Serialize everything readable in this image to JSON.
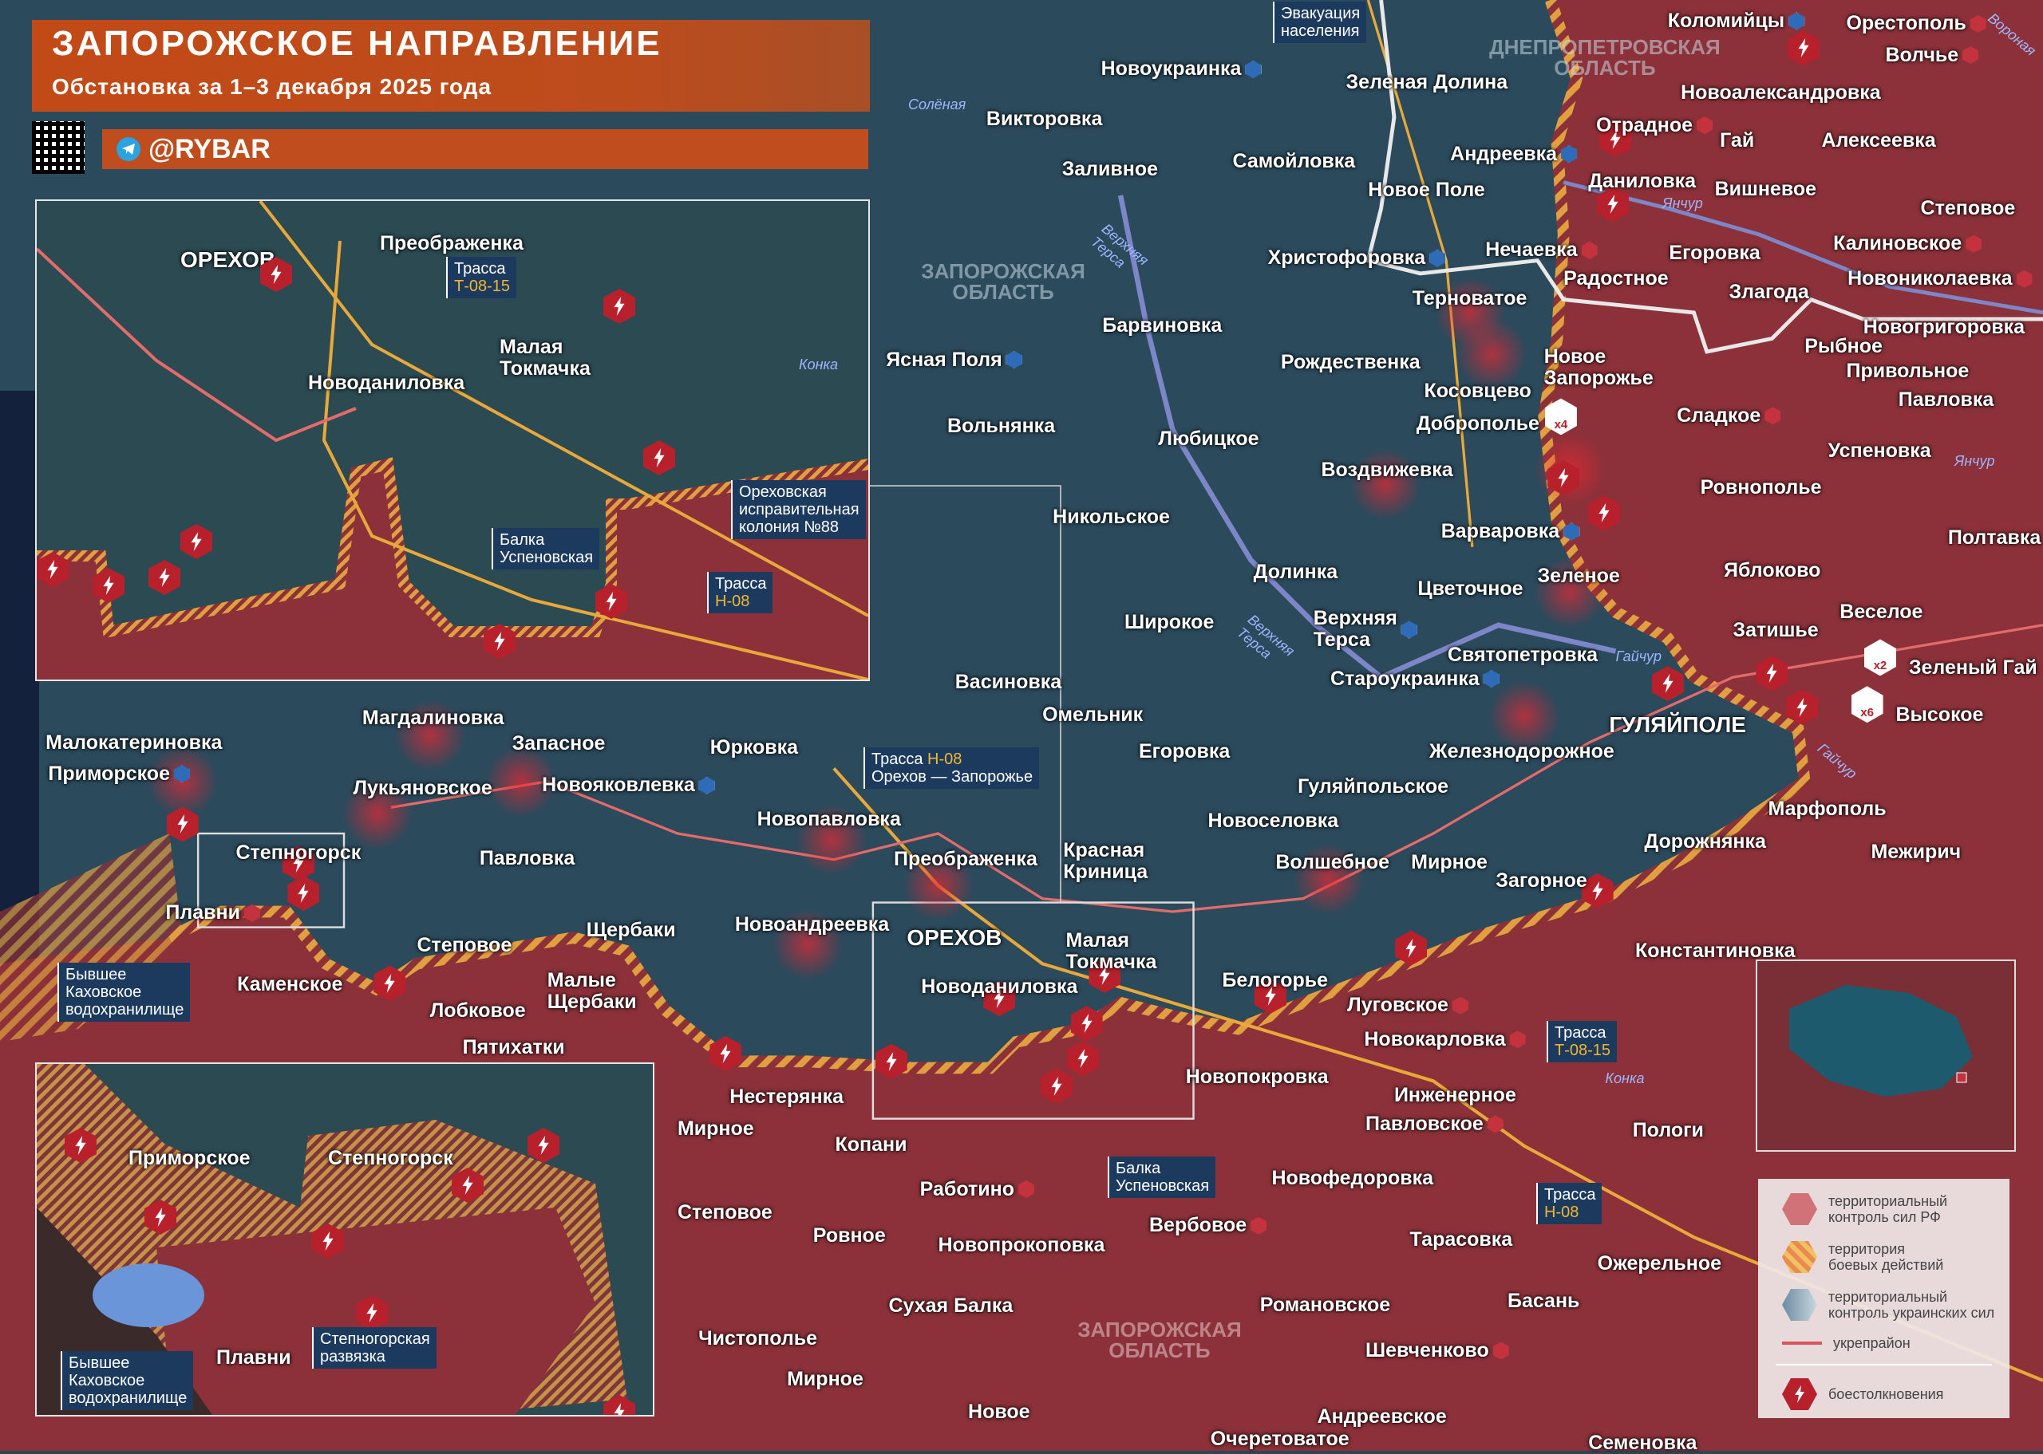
{
  "header": {
    "title": "ЗАПОРОЖСКОЕ НАПРАВЛЕНИЕ",
    "subtitle": "Обстановка за 1–3 декабря 2025 года",
    "channel": "@RYBAR"
  },
  "colors": {
    "ru_territory": "#8c3139",
    "ua_territory": "#2b4a5c",
    "combat_zone": "#e0a040",
    "clash": "#b8202b",
    "fortification": "#e46b6b",
    "accent": "#c24a17"
  },
  "regions": [
    "ДНЕПРОПЕТРОВСКАЯ\nОБЛАСТЬ",
    "ЗАПОРОЖСКАЯ\nОБЛАСТЬ",
    "ЗАПОРОЖСКАЯ\nОБЛАСТЬ"
  ],
  "rivers": [
    "Солёная",
    "Верхняя\nТерса",
    "Янчур",
    "Янчур",
    "Верхняя\nТерса",
    "Гайчур",
    "Гайчур",
    "Конка",
    "Вороная"
  ],
  "callouts": {
    "evacuation": "Эвакуация\nнаселения",
    "road_h08_main": {
      "label": "Трасса",
      "code": "Н-08",
      "route": "Орехов — Запорожье"
    },
    "balka": "Балка\nУспеновская",
    "road_t0815": {
      "label": "Трасса",
      "code": "Т-08-15"
    },
    "road_h08": {
      "label": "Трасса",
      "code": "Н-08"
    },
    "reservoir": "Бывшее\nКаховское\nводохранилище"
  },
  "places": [
    {
      "name": "Новоукраинка",
      "control": "ua"
    },
    {
      "name": "Зеленая Долина",
      "control": ""
    },
    {
      "name": "Коломийцы",
      "control": "ua"
    },
    {
      "name": "Орестополь",
      "control": "ru"
    },
    {
      "name": "Волчье",
      "control": "ru"
    },
    {
      "name": "Новоалександровка",
      "control": ""
    },
    {
      "name": "Викторовка",
      "control": ""
    },
    {
      "name": "Отрадное",
      "control": "ru"
    },
    {
      "name": "Гай",
      "control": ""
    },
    {
      "name": "Алексеевка",
      "control": ""
    },
    {
      "name": "Андреевка",
      "control": "ua"
    },
    {
      "name": "Заливное",
      "control": ""
    },
    {
      "name": "Самойловка",
      "control": ""
    },
    {
      "name": "Даниловка",
      "control": ""
    },
    {
      "name": "Вишневое",
      "control": ""
    },
    {
      "name": "Новое Поле",
      "control": ""
    },
    {
      "name": "Степовое",
      "control": ""
    },
    {
      "name": "Нечаевка",
      "control": "ru"
    },
    {
      "name": "Егоровка",
      "control": ""
    },
    {
      "name": "Калиновское",
      "control": "ru"
    },
    {
      "name": "Христофоровка",
      "control": "ua"
    },
    {
      "name": "Радостное",
      "control": ""
    },
    {
      "name": "Новониколаевка",
      "control": "ru"
    },
    {
      "name": "Терноватое",
      "control": ""
    },
    {
      "name": "Злагода",
      "control": ""
    },
    {
      "name": "Новогригоровка",
      "control": ""
    },
    {
      "name": "Барвиновка",
      "control": ""
    },
    {
      "name": "Рождественка",
      "control": ""
    },
    {
      "name": "Новое\nЗапорожье",
      "control": ""
    },
    {
      "name": "Рыбное",
      "control": ""
    },
    {
      "name": "Привольное",
      "control": ""
    },
    {
      "name": "Ясная Поля",
      "control": "ua"
    },
    {
      "name": "Косовцево",
      "control": ""
    },
    {
      "name": "Павловка",
      "control": ""
    },
    {
      "name": "Вольнянка",
      "control": ""
    },
    {
      "name": "Сладкое",
      "control": "ru"
    },
    {
      "name": "Доброполье",
      "control": ""
    },
    {
      "name": "Любицкое",
      "control": ""
    },
    {
      "name": "Успеновка",
      "control": ""
    },
    {
      "name": "Воздвижевка",
      "control": ""
    },
    {
      "name": "Ровнополье",
      "control": ""
    },
    {
      "name": "Никольское",
      "control": ""
    },
    {
      "name": "Варваровка",
      "control": "ua"
    },
    {
      "name": "Полтавка",
      "control": ""
    },
    {
      "name": "Долинка",
      "control": ""
    },
    {
      "name": "Зеленое",
      "control": ""
    },
    {
      "name": "Яблоково",
      "control": ""
    },
    {
      "name": "Цветочное",
      "control": ""
    },
    {
      "name": "Веселое",
      "control": ""
    },
    {
      "name": "Широкое",
      "control": ""
    },
    {
      "name": "Верхняя\nТерса",
      "control": "ua"
    },
    {
      "name": "Затишье",
      "control": ""
    },
    {
      "name": "Святопетровка",
      "control": ""
    },
    {
      "name": "Зеленый Гай",
      "control": ""
    },
    {
      "name": "Староукраинка",
      "control": "ua"
    },
    {
      "name": "Васиновка",
      "control": ""
    },
    {
      "name": "Омельник",
      "control": ""
    },
    {
      "name": "Высокое",
      "control": ""
    },
    {
      "name": "ГУЛЯЙПОЛЕ",
      "control": ""
    },
    {
      "name": "Егоровка",
      "control": ""
    },
    {
      "name": "Железнодорожное",
      "control": ""
    },
    {
      "name": "Гуляйпольское",
      "control": ""
    },
    {
      "name": "Марфополь",
      "control": ""
    },
    {
      "name": "Новоселовка",
      "control": ""
    },
    {
      "name": "Дорожнянка",
      "control": ""
    },
    {
      "name": "Межирич",
      "control": ""
    },
    {
      "name": "Красная\nКриница",
      "control": ""
    },
    {
      "name": "Волшебное",
      "control": ""
    },
    {
      "name": "Мирное",
      "control": ""
    },
    {
      "name": "Загорное",
      "control": ""
    },
    {
      "name": "Константиновка",
      "control": ""
    },
    {
      "name": "Малая\nТокмачка",
      "control": ""
    },
    {
      "name": "ОРЕХОВ",
      "control": ""
    },
    {
      "name": "Новоданиловка",
      "control": ""
    },
    {
      "name": "Белогорье",
      "control": ""
    },
    {
      "name": "Луговское",
      "control": "ru"
    },
    {
      "name": "Новокарловка",
      "control": "ru"
    },
    {
      "name": "Новопокровка",
      "control": ""
    },
    {
      "name": "Инженерное",
      "control": ""
    },
    {
      "name": "Павловское",
      "control": "ru"
    },
    {
      "name": "Пологи",
      "control": ""
    },
    {
      "name": "Новофедоровка",
      "control": ""
    },
    {
      "name": "Вербовое",
      "control": "ru"
    },
    {
      "name": "Тарасовка",
      "control": ""
    },
    {
      "name": "Ожерельное",
      "control": ""
    },
    {
      "name": "Романовское",
      "control": ""
    },
    {
      "name": "Басань",
      "control": ""
    },
    {
      "name": "Шевченково",
      "control": "ru"
    },
    {
      "name": "Андреевское",
      "control": ""
    },
    {
      "name": "Очеретоватое",
      "control": ""
    },
    {
      "name": "Семеновка",
      "control": ""
    },
    {
      "name": "Новое",
      "control": ""
    },
    {
      "name": "Мирное",
      "control": ""
    },
    {
      "name": "Чистополье",
      "control": ""
    },
    {
      "name": "Сухая Балка",
      "control": ""
    },
    {
      "name": "Новопрокоповка",
      "control": ""
    },
    {
      "name": "Ровное",
      "control": ""
    },
    {
      "name": "Работино",
      "control": "ru"
    },
    {
      "name": "Копани",
      "control": ""
    },
    {
      "name": "Степовое",
      "control": ""
    },
    {
      "name": "Мирное",
      "control": ""
    },
    {
      "name": "Нестерянка",
      "control": ""
    },
    {
      "name": "Пятихатки",
      "control": ""
    },
    {
      "name": "Лобковое",
      "control": ""
    },
    {
      "name": "Малые\nЩербаки",
      "control": ""
    },
    {
      "name": "Щербаки",
      "control": ""
    },
    {
      "name": "Новоандреевка",
      "control": ""
    },
    {
      "name": "Преображенка",
      "control": ""
    },
    {
      "name": "Новопавловка",
      "control": ""
    },
    {
      "name": "Юрковка",
      "control": ""
    },
    {
      "name": "Запасное",
      "control": ""
    },
    {
      "name": "Магдалиновка",
      "control": ""
    },
    {
      "name": "Малокатериновка",
      "control": ""
    },
    {
      "name": "Приморское",
      "control": "ua"
    },
    {
      "name": "Лукьяновское",
      "control": ""
    },
    {
      "name": "Новояковлевка",
      "control": "ua"
    },
    {
      "name": "Степногорск",
      "control": ""
    },
    {
      "name": "Павловка",
      "control": ""
    },
    {
      "name": "Плавни",
      "control": "ru"
    },
    {
      "name": "Степовое",
      "control": ""
    },
    {
      "name": "Каменское",
      "control": ""
    }
  ],
  "badges": [
    "x4",
    "x2",
    "x6"
  ],
  "inset_top": {
    "labels": [
      "ОРЕХОВ",
      "Преображенка",
      "Малая\nТокмачка",
      "Новоданиловка",
      "Конка"
    ],
    "road_t0815": {
      "label": "Трасса",
      "code": "Т-08-15"
    },
    "road_h08": {
      "label": "Трасса",
      "code": "Н-08"
    },
    "colony": "Ореховская\nисправительная\nколония №88",
    "balka": "Балка\nУспеновская"
  },
  "inset_bottom": {
    "labels": [
      "Приморское",
      "Степногорск",
      "Плавни"
    ],
    "junction": "Степногорская\nразвязка",
    "reservoir": "Бывшее\nКаховское\nводохранилище"
  },
  "legend": {
    "items": [
      {
        "label": "территориальный\nконтроль сил РФ",
        "swatch": "ru"
      },
      {
        "label": "территория\nбоевых действий",
        "swatch": "combat"
      },
      {
        "label": "территориальный\nконтроль украинских сил",
        "swatch": "ua"
      },
      {
        "label": "укрепрайон",
        "swatch": "line"
      },
      {
        "label": "боестолкновения",
        "swatch": "clash"
      }
    ]
  }
}
